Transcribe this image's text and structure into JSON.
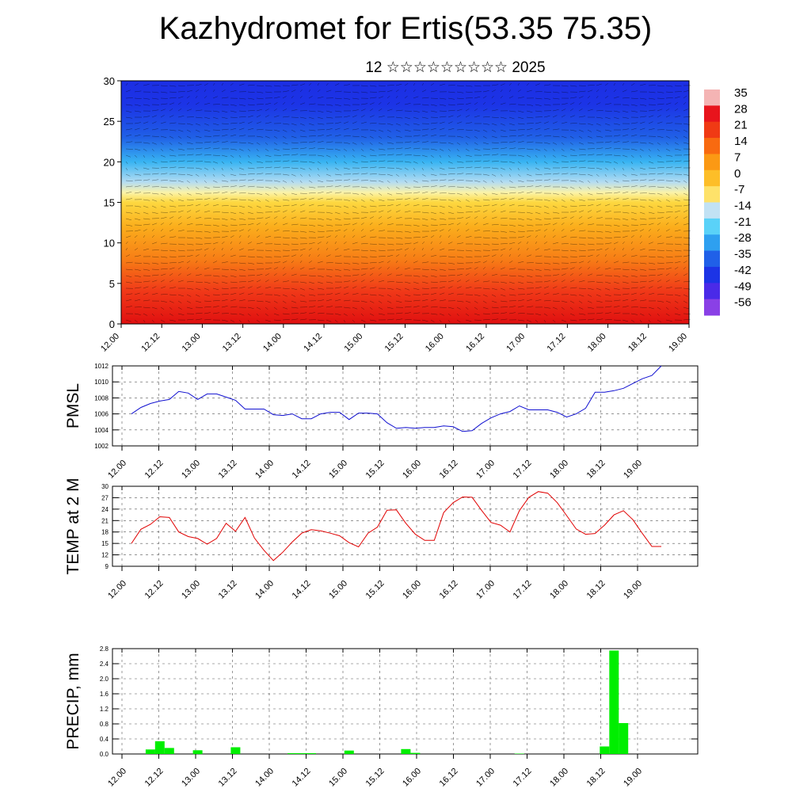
{
  "title": "Kazhydromet for Ertis(53.35 75.35)",
  "subtitle": "12 ☆☆☆☆☆☆☆☆☆ 2025",
  "time_ticks": [
    "12.00",
    "12.12",
    "13.00",
    "13.12",
    "14.00",
    "14.12",
    "15.00",
    "15.12",
    "16.00",
    "16.12",
    "17.00",
    "17.12",
    "18.00",
    "18.12",
    "19.00"
  ],
  "chart_data": [
    {
      "type": "heatmap",
      "y_ticks": [
        "0",
        "5",
        "10",
        "15",
        "20",
        "25",
        "30"
      ],
      "ylim": [
        0,
        30
      ],
      "colorbar_labels": [
        "35",
        "28",
        "21",
        "14",
        "7",
        "0",
        "-7",
        "-14",
        "-21",
        "-28",
        "-35",
        "-42",
        "-49",
        "-56"
      ],
      "colorbar_colors": [
        "#f4b4b4",
        "#e8141c",
        "#f03a14",
        "#f86a10",
        "#fb9914",
        "#fdbe28",
        "#fee26a",
        "#c2e2f4",
        "#5ad2f8",
        "#2ea0f0",
        "#2060e8",
        "#1c34e6",
        "#4a2ae8",
        "#8a40e6"
      ],
      "vertical_profile": [
        {
          "h": 0,
          "color": "#e01010"
        },
        {
          "h": 4,
          "color": "#f03818"
        },
        {
          "h": 8,
          "color": "#f77e16"
        },
        {
          "h": 12,
          "color": "#fbae1c"
        },
        {
          "h": 15,
          "color": "#fdd840"
        },
        {
          "h": 16.2,
          "color": "#fbf3a8"
        },
        {
          "h": 17.5,
          "color": "#b4dcf2"
        },
        {
          "h": 20,
          "color": "#38b4f2"
        },
        {
          "h": 23,
          "color": "#2060e6"
        },
        {
          "h": 27,
          "color": "#1c34e6"
        },
        {
          "h": 30,
          "color": "#1c2ee4"
        }
      ]
    },
    {
      "type": "line",
      "ylabel": "PMSL",
      "y_ticks": [
        1002,
        1004,
        1006,
        1008,
        1010,
        1012
      ],
      "ylim": [
        1002,
        1012
      ],
      "color": "#1010d0",
      "x": [
        0,
        3,
        6,
        9,
        12,
        15,
        18,
        21,
        24,
        27,
        30,
        33,
        36,
        39,
        42,
        45,
        48,
        51,
        54,
        57,
        60,
        63,
        66,
        69,
        72,
        75,
        78,
        81,
        84,
        87,
        90,
        93,
        96,
        99,
        102,
        105,
        108,
        111,
        114,
        117,
        120,
        123,
        126,
        129,
        132,
        135,
        138,
        141,
        144,
        147,
        150,
        153,
        156,
        159,
        162,
        165,
        168
      ],
      "values": [
        1006,
        1006.8,
        1007.3,
        1007.6,
        1007.8,
        1008.8,
        1008.6,
        1007.8,
        1008.5,
        1008.5,
        1008.1,
        1007.7,
        1006.6,
        1006.6,
        1006.6,
        1005.9,
        1005.8,
        1006.0,
        1005.4,
        1005.4,
        1006.0,
        1006.2,
        1006.2,
        1005.3,
        1006.1,
        1006.1,
        1006.0,
        1004.9,
        1004.2,
        1004.3,
        1004.2,
        1004.3,
        1004.3,
        1004.5,
        1004.4,
        1003.8,
        1003.9,
        1004.8,
        1005.5,
        1006.0,
        1006.3,
        1007.0,
        1006.5,
        1006.5,
        1006.5,
        1006.2,
        1005.6,
        1006.0,
        1006.7,
        1008.7,
        1008.7,
        1008.9,
        1009.2,
        1009.8,
        1010.4,
        1010.8,
        1012.0
      ]
    },
    {
      "type": "line",
      "ylabel": "TEMP at 2 M",
      "y_ticks": [
        9,
        12,
        15,
        18,
        21,
        24,
        27,
        30
      ],
      "ylim": [
        9,
        30
      ],
      "color": "#e00000",
      "x": [
        0,
        3,
        6,
        9,
        12,
        15,
        18,
        21,
        24,
        27,
        30,
        33,
        36,
        39,
        42,
        45,
        48,
        51,
        54,
        57,
        60,
        63,
        66,
        69,
        72,
        75,
        78,
        81,
        84,
        87,
        90,
        93,
        96,
        99,
        102,
        105,
        108,
        111,
        114,
        117,
        120,
        123,
        126,
        129,
        132,
        135,
        138,
        141,
        144,
        147,
        150,
        153,
        156,
        159,
        162,
        165,
        168
      ],
      "values": [
        15,
        18.7,
        20,
        22,
        21.8,
        18,
        16.8,
        16.3,
        14.8,
        16.3,
        20.3,
        18.2,
        21.8,
        16.4,
        13.2,
        10.5,
        12.7,
        15.4,
        17.7,
        18.6,
        18.3,
        17.7,
        17.0,
        15.2,
        14.1,
        17.7,
        19.3,
        23.7,
        23.8,
        20.3,
        17.4,
        15.8,
        15.8,
        23.1,
        25.7,
        27.2,
        27.1,
        23.7,
        20.5,
        19.8,
        18.0,
        23.6,
        27.1,
        28.6,
        28.2,
        25.7,
        22.3,
        18.8,
        17.4,
        17.6,
        19.8,
        22.5,
        23.6,
        21.2,
        17.6,
        14.2,
        14.2
      ]
    },
    {
      "type": "bar",
      "ylabel": "PRECIP, mm",
      "y_ticks": [
        "0.0",
        "0.4",
        "0.8",
        "1.2",
        "1.6",
        "2.0",
        "2.4",
        "2.8"
      ],
      "ylim": [
        0,
        2.8
      ],
      "color": "#00ee00",
      "x": [
        6,
        9,
        12,
        21,
        33,
        51,
        54,
        57,
        69,
        87,
        90,
        123,
        150,
        153,
        156
      ],
      "values": [
        0.12,
        0.34,
        0.16,
        0.1,
        0.18,
        0.02,
        0.02,
        0.02,
        0.09,
        0.13,
        0.03,
        0.01,
        0.2,
        2.75,
        0.82
      ]
    }
  ]
}
